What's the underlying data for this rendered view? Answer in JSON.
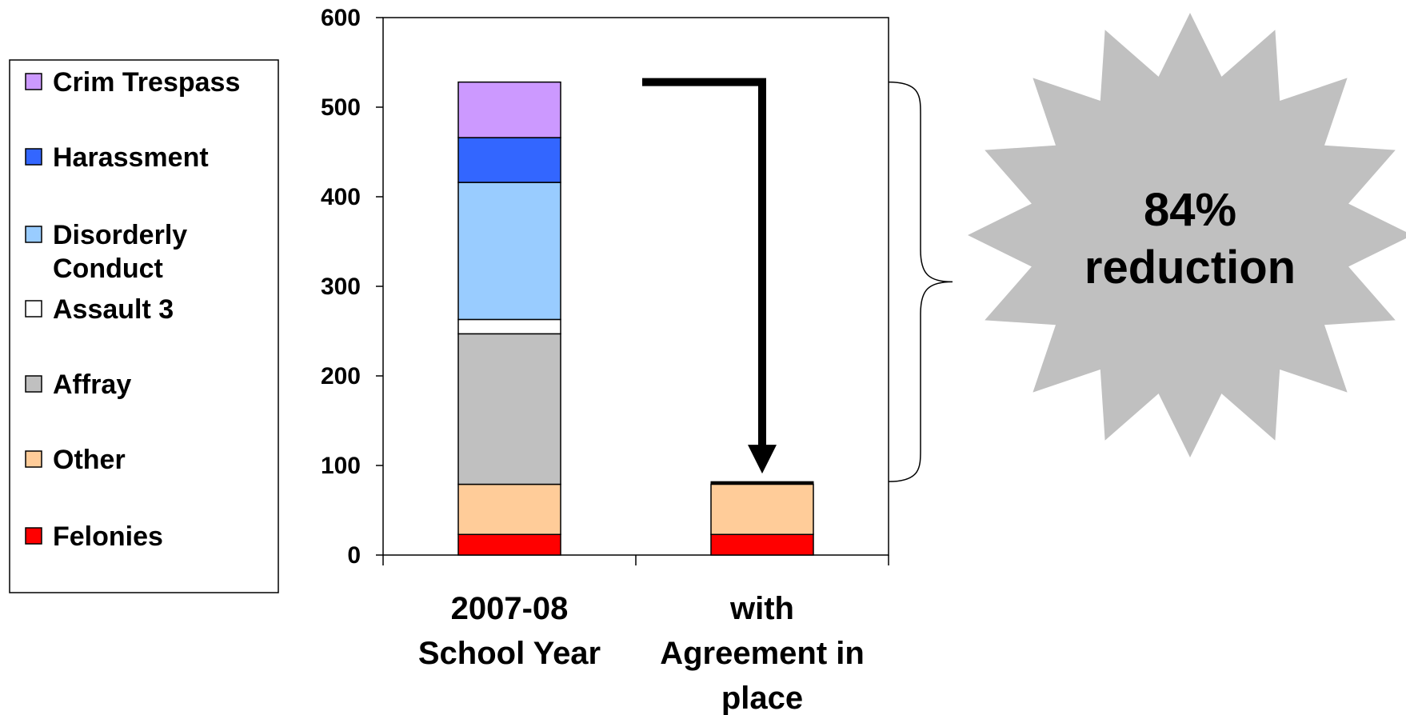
{
  "chart_data": {
    "type": "bar",
    "stacked": true,
    "categories": [
      "2007-08 School Year",
      "with Agreement in place"
    ],
    "category_lines": [
      [
        "2007-08",
        "School Year"
      ],
      [
        "with",
        "Agreement in",
        "place"
      ]
    ],
    "series": [
      {
        "name": "Felonies",
        "color": "#ff0000",
        "values": [
          23,
          23
        ]
      },
      {
        "name": "Other",
        "color": "#ffcc99",
        "values": [
          56,
          56
        ]
      },
      {
        "name": "Affray",
        "color": "#c0c0c0",
        "values": [
          168,
          0
        ]
      },
      {
        "name": "Assault 3",
        "color": "#ffffff",
        "values": [
          16,
          0
        ]
      },
      {
        "name": "Disorderly Conduct",
        "color": "#99ccff",
        "values": [
          153,
          0
        ]
      },
      {
        "name": "Harassment",
        "color": "#3366ff",
        "values": [
          50,
          0
        ]
      },
      {
        "name": "Crim Trespass",
        "color": "#cc99ff",
        "values": [
          62,
          0
        ]
      }
    ],
    "extra_segment": {
      "category_index": 1,
      "value": 3,
      "color": "#000000"
    },
    "ylim": [
      0,
      600
    ],
    "yticks": [
      0,
      100,
      200,
      300,
      400,
      500,
      600
    ],
    "grid": false,
    "legend_position": "left",
    "legend_items": [
      {
        "label_lines": [
          "Crim Trespass"
        ],
        "color": "#cc99ff"
      },
      {
        "label_lines": [
          "Harassment"
        ],
        "color": "#3366ff"
      },
      {
        "label_lines": [
          "Disorderly",
          "Conduct"
        ],
        "color": "#99ccff"
      },
      {
        "label_lines": [
          "Assault 3"
        ],
        "color": "#ffffff"
      },
      {
        "label_lines": [
          "Affray"
        ],
        "color": "#c0c0c0"
      },
      {
        "label_lines": [
          "Other"
        ],
        "color": "#ffcc99"
      },
      {
        "label_lines": [
          "Felonies"
        ],
        "color": "#ff0000"
      }
    ],
    "annotation": {
      "lines": [
        "84%",
        "reduction"
      ],
      "color": "#c0c0c0"
    }
  }
}
